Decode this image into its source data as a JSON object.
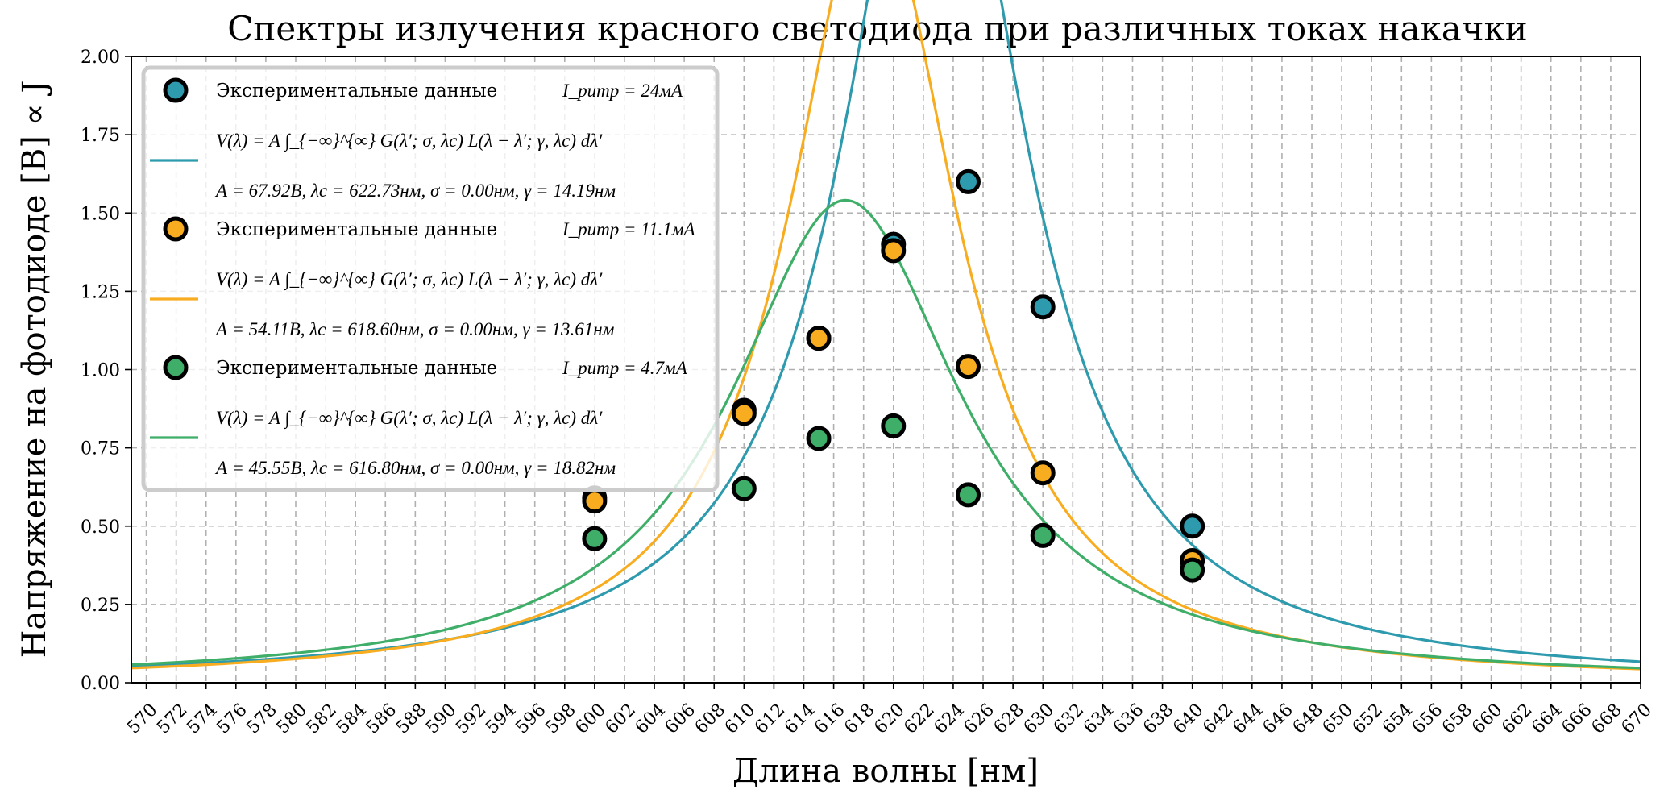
{
  "chart_data": {
    "type": "scatter",
    "title": "Спектры излучения красного светодиода при различных токах накачки",
    "xlabel": "Длина волны [нм]",
    "ylabel": "Напряжение на фотодиоде [B] ∝ J",
    "xlim": [
      569,
      670
    ],
    "ylim": [
      0,
      2.0
    ],
    "xticks": [
      570,
      572,
      574,
      576,
      578,
      580,
      582,
      584,
      586,
      588,
      590,
      592,
      594,
      596,
      598,
      600,
      602,
      604,
      606,
      608,
      610,
      612,
      614,
      616,
      618,
      620,
      622,
      624,
      626,
      628,
      630,
      632,
      634,
      636,
      638,
      640,
      642,
      644,
      646,
      648,
      650,
      652,
      654,
      656,
      658,
      660,
      662,
      664,
      666,
      668,
      670
    ],
    "yticks": [
      "0.00",
      "0.25",
      "0.50",
      "0.75",
      "1.00",
      "1.25",
      "1.50",
      "1.75",
      "2.00"
    ],
    "grid": true,
    "legend_position": "top-left",
    "series": [
      {
        "name": "Экспериментальные данные I_pump = 24мА",
        "scatter_label_text": "Экспериментальные данные",
        "scatter_label_math": "I_pump = 24мА",
        "color": "#2e9aad",
        "points": [
          [
            600,
            0.59
          ],
          [
            610,
            0.87
          ],
          [
            615,
            1.1
          ],
          [
            620,
            1.4
          ],
          [
            625,
            1.6
          ],
          [
            630,
            1.2
          ],
          [
            640,
            0.5
          ]
        ],
        "fit_formula": "V(λ) = A ∫_{−∞}^{∞} G(λ′; σ, λc) L(λ − λ′; γ, λc) dλ′",
        "fit_params": "A = 67.92В, λc = 622.73нм, σ = 0.00нм, γ = 14.19нм",
        "fit": {
          "A": 67.92,
          "lambda_c": 622.73,
          "sigma": 0.0,
          "gamma": 14.19
        }
      },
      {
        "name": "Экспериментальные данные I_pump = 11.1мА",
        "scatter_label_text": "Экспериментальные данные",
        "scatter_label_math": "I_pump = 11.1мА",
        "color": "#f8ac20",
        "points": [
          [
            600,
            0.58
          ],
          [
            610,
            0.86
          ],
          [
            615,
            1.1
          ],
          [
            620,
            1.38
          ],
          [
            625,
            1.01
          ],
          [
            630,
            0.67
          ],
          [
            640,
            0.39
          ]
        ],
        "fit_formula": "V(λ) = A ∫_{−∞}^{∞} G(λ′; σ, λc) L(λ − λ′; γ, λc) dλ′",
        "fit_params": "A = 54.11В, λc = 618.60нм, σ = 0.00нм, γ = 13.61нм",
        "fit": {
          "A": 54.11,
          "lambda_c": 618.6,
          "sigma": 0.0,
          "gamma": 13.61
        }
      },
      {
        "name": "Экспериментальные данные I_pump = 4.7мА",
        "scatter_label_text": "Экспериментальные данные",
        "scatter_label_math": "I_pump = 4.7мА",
        "color": "#3fae68",
        "points": [
          [
            600,
            0.46
          ],
          [
            610,
            0.62
          ],
          [
            615,
            0.78
          ],
          [
            620,
            0.82
          ],
          [
            625,
            0.6
          ],
          [
            630,
            0.47
          ],
          [
            640,
            0.36
          ]
        ],
        "fit_formula": "V(λ) = A ∫_{−∞}^{∞} G(λ′; σ, λc) L(λ − λ′; γ, λc) dλ′",
        "fit_params": "A = 45.55В, λc = 616.80нм, σ = 0.00нм, γ = 18.82нм",
        "fit": {
          "A": 45.55,
          "lambda_c": 616.8,
          "sigma": 0.0,
          "gamma": 18.82
        }
      }
    ]
  }
}
